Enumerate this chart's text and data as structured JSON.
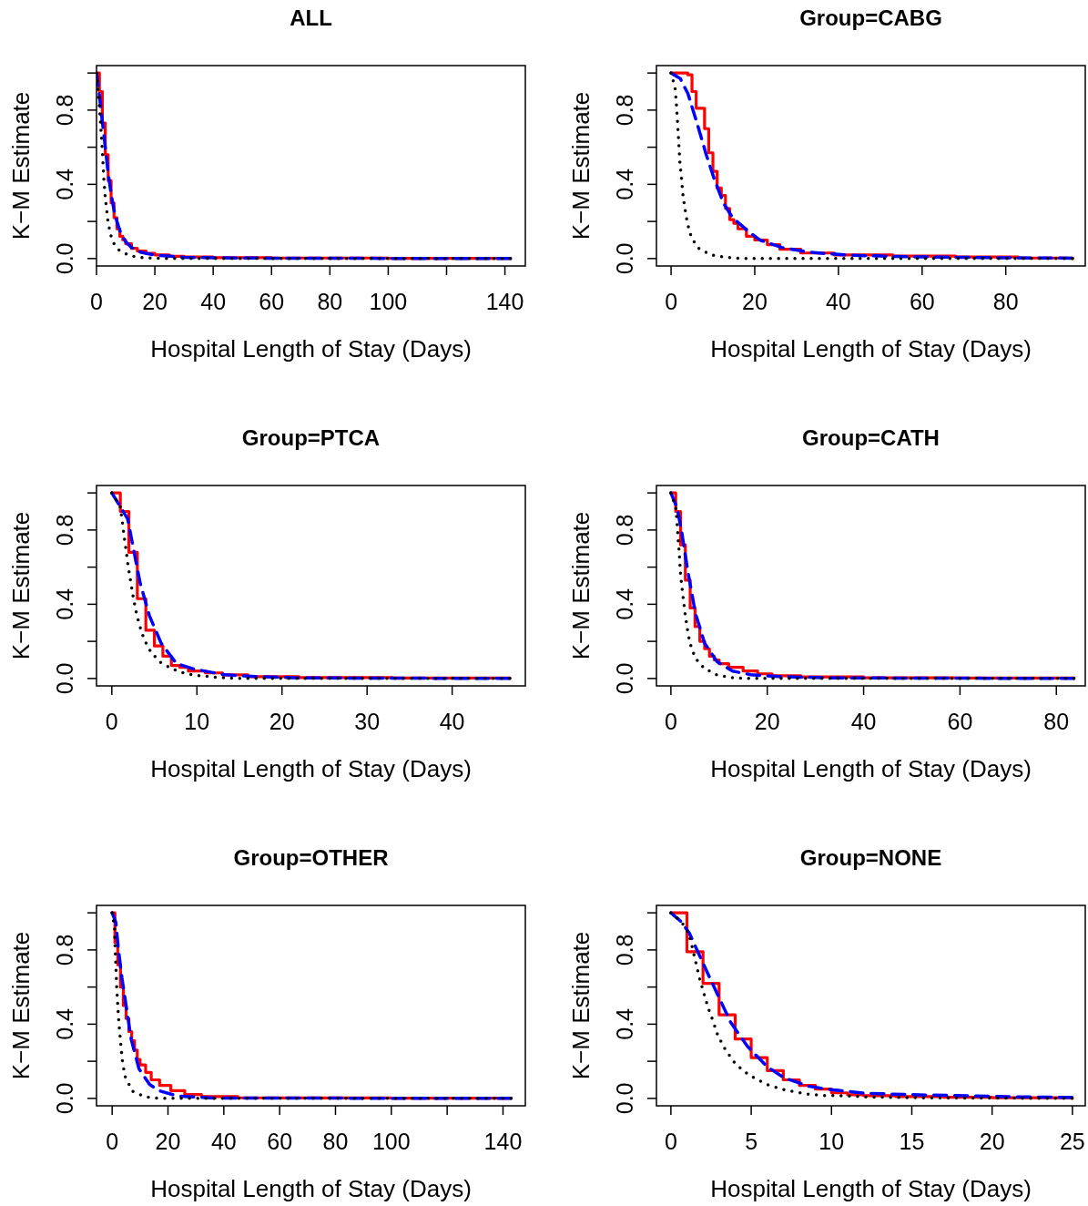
{
  "chart_data": [
    {
      "type": "step",
      "title": "ALL",
      "xlabel": "Hospital Length of Stay (Days)",
      "ylabel": "K−M Estimate",
      "xlim": [
        0,
        147
      ],
      "ylim": [
        -0.04,
        1.04
      ],
      "xticks": [
        0,
        20,
        40,
        60,
        80,
        100,
        {
          "value": 120,
          "label": null
        },
        140
      ],
      "yticks": [
        {
          "value": 0,
          "label": "0.0"
        },
        {
          "value": 0.2,
          "label": null
        },
        {
          "value": 0.4,
          "label": "0.4"
        },
        {
          "value": 0.6,
          "label": null
        },
        {
          "value": 0.8,
          "label": "0.8"
        },
        {
          "value": 1,
          "label": null
        }
      ],
      "series": [
        {
          "type": "step",
          "color": "#ff0000",
          "line_style": "solid",
          "x": [
            0,
            1,
            2,
            3,
            4,
            5,
            6,
            7,
            8,
            9,
            10,
            12,
            14,
            17,
            20,
            25,
            30,
            40,
            60,
            100,
            142
          ],
          "values": [
            1,
            0.9,
            0.73,
            0.56,
            0.42,
            0.3,
            0.22,
            0.16,
            0.12,
            0.1,
            0.08,
            0.055,
            0.04,
            0.028,
            0.02,
            0.012,
            0.008,
            0.005,
            0.003,
            0.001,
            0
          ]
        },
        {
          "type": "line",
          "color": "#0000ff",
          "line_style": "dashed",
          "x": [
            0,
            1,
            2,
            3,
            4,
            5,
            6,
            7,
            8,
            10,
            12,
            15,
            20,
            30,
            40,
            60,
            100,
            142
          ],
          "values": [
            1,
            0.88,
            0.74,
            0.6,
            0.46,
            0.35,
            0.26,
            0.2,
            0.15,
            0.09,
            0.06,
            0.035,
            0.018,
            0.007,
            0.004,
            0.002,
            0.001,
            0
          ]
        },
        {
          "type": "line",
          "color": "#000000",
          "line_style": "dotted",
          "x": [
            0,
            1,
            1.5,
            2,
            2.5,
            3,
            4,
            5,
            6,
            8,
            12,
            17,
            25,
            142
          ],
          "values": [
            1,
            0.82,
            0.7,
            0.58,
            0.43,
            0.33,
            0.19,
            0.12,
            0.08,
            0.04,
            0.013,
            0.003,
            0,
            0
          ]
        }
      ]
    },
    {
      "type": "step",
      "title": "Group=CABG",
      "xlabel": "Hospital Length of Stay (Days)",
      "ylabel": "K−M Estimate",
      "xlim": [
        -3.5,
        99
      ],
      "ylim": [
        -0.04,
        1.04
      ],
      "xticks": [
        0,
        20,
        40,
        60,
        80
      ],
      "yticks": [
        {
          "value": 0,
          "label": "0.0"
        },
        {
          "value": 0.2,
          "label": null
        },
        {
          "value": 0.4,
          "label": "0.4"
        },
        {
          "value": 0.6,
          "label": null
        },
        {
          "value": 0.8,
          "label": "0.8"
        },
        {
          "value": 1,
          "label": null
        }
      ],
      "series": [
        {
          "type": "step",
          "color": "#ff0000",
          "line_style": "solid",
          "x": [
            0,
            4,
            5,
            6,
            8,
            9,
            10,
            11,
            12,
            13,
            14,
            15,
            16,
            18,
            20,
            23,
            26,
            31,
            39,
            53,
            68,
            83,
            96
          ],
          "values": [
            1,
            0.99,
            0.9,
            0.81,
            0.7,
            0.57,
            0.47,
            0.38,
            0.34,
            0.27,
            0.21,
            0.19,
            0.16,
            0.12,
            0.1,
            0.075,
            0.05,
            0.03,
            0.02,
            0.013,
            0.008,
            0.003,
            0
          ]
        },
        {
          "type": "line",
          "color": "#0000ff",
          "line_style": "dashed",
          "x": [
            0,
            2.2,
            4,
            6.2,
            8.4,
            10.3,
            12.5,
            14.7,
            18.3,
            21.2,
            26.4,
            33,
            42.5,
            57,
            75.5,
            96
          ],
          "values": [
            1,
            0.97,
            0.89,
            0.73,
            0.56,
            0.43,
            0.3,
            0.22,
            0.15,
            0.1,
            0.06,
            0.034,
            0.018,
            0.01,
            0.005,
            0.002
          ]
        },
        {
          "type": "line",
          "color": "#000000",
          "line_style": "dotted",
          "x": [
            0,
            0.95,
            1.25,
            1.47,
            1.68,
            1.9,
            2.1,
            2.5,
            2.8,
            3.3,
            3.9,
            4.9,
            6.8,
            9.9,
            13.2,
            16.5,
            96
          ],
          "values": [
            1,
            0.92,
            0.84,
            0.76,
            0.68,
            0.6,
            0.52,
            0.43,
            0.35,
            0.27,
            0.19,
            0.11,
            0.05,
            0.018,
            0.007,
            0,
            0
          ]
        }
      ]
    },
    {
      "type": "step",
      "title": "Group=PTCA",
      "xlabel": "Hospital Length of Stay (Days)",
      "ylabel": "K−M Estimate",
      "xlim": [
        -1.8,
        48.6
      ],
      "ylim": [
        -0.04,
        1.04
      ],
      "xticks": [
        0,
        10,
        20,
        30,
        40
      ],
      "yticks": [
        {
          "value": 0,
          "label": "0.0"
        },
        {
          "value": 0.2,
          "label": null
        },
        {
          "value": 0.4,
          "label": "0.4"
        },
        {
          "value": 0.6,
          "label": null
        },
        {
          "value": 0.8,
          "label": "0.8"
        },
        {
          "value": 1,
          "label": null
        }
      ],
      "series": [
        {
          "type": "step",
          "color": "#ff0000",
          "line_style": "solid",
          "x": [
            0,
            1,
            2,
            3,
            4,
            5,
            6,
            7,
            8,
            9,
            11,
            13,
            16,
            22,
            33,
            46.8
          ],
          "values": [
            1,
            0.9,
            0.68,
            0.43,
            0.26,
            0.175,
            0.12,
            0.07,
            0.06,
            0.04,
            0.03,
            0.02,
            0.01,
            0.005,
            0.002,
            0
          ]
        },
        {
          "type": "line",
          "color": "#0000ff",
          "line_style": "dashed",
          "x": [
            0,
            1.86,
            3.3,
            4.4,
            5.8,
            7.6,
            9.7,
            13.3,
            16.9,
            21.9,
            46.8
          ],
          "values": [
            1,
            0.86,
            0.52,
            0.34,
            0.19,
            0.08,
            0.05,
            0.02,
            0.01,
            0.003,
            0
          ]
        },
        {
          "type": "line",
          "color": "#000000",
          "line_style": "dotted",
          "x": [
            0,
            0.97,
            1.22,
            1.43,
            1.68,
            1.9,
            2.19,
            2.47,
            2.8,
            3.23,
            3.8,
            4.62,
            5.73,
            7.17,
            8.67,
            10.3,
            11.9,
            13.5,
            15.1,
            46.8
          ],
          "values": [
            1,
            0.93,
            0.85,
            0.77,
            0.69,
            0.61,
            0.53,
            0.45,
            0.37,
            0.29,
            0.21,
            0.14,
            0.086,
            0.05,
            0.026,
            0.015,
            0.008,
            0.003,
            0,
            0
          ]
        }
      ]
    },
    {
      "type": "step",
      "title": "Group=CATH",
      "xlabel": "Hospital Length of Stay (Days)",
      "ylabel": "K−M Estimate",
      "xlim": [
        -3,
        86
      ],
      "ylim": [
        -0.04,
        1.04
      ],
      "xticks": [
        0,
        20,
        40,
        60,
        80
      ],
      "yticks": [
        {
          "value": 0,
          "label": "0.0"
        },
        {
          "value": 0.2,
          "label": null
        },
        {
          "value": 0.4,
          "label": "0.4"
        },
        {
          "value": 0.6,
          "label": null
        },
        {
          "value": 0.8,
          "label": "0.8"
        },
        {
          "value": 1,
          "label": null
        }
      ],
      "series": [
        {
          "type": "step",
          "color": "#ff0000",
          "line_style": "solid",
          "x": [
            0,
            1,
            2,
            3,
            4,
            5,
            6,
            7,
            8,
            9,
            10,
            12,
            15,
            18,
            21,
            27,
            40,
            59,
            83.7
          ],
          "values": [
            1,
            0.9,
            0.72,
            0.53,
            0.38,
            0.28,
            0.2,
            0.16,
            0.12,
            0.1,
            0.08,
            0.06,
            0.04,
            0.025,
            0.015,
            0.008,
            0.004,
            0.002,
            0
          ]
        },
        {
          "type": "line",
          "color": "#0000ff",
          "line_style": "dashed",
          "x": [
            0,
            1.28,
            2.24,
            3.5,
            5.1,
            7,
            9.6,
            12.8,
            16.6,
            22.4,
            33.9,
            83.7
          ],
          "values": [
            1,
            0.92,
            0.79,
            0.58,
            0.35,
            0.19,
            0.09,
            0.04,
            0.02,
            0.01,
            0.003,
            0
          ]
        },
        {
          "type": "line",
          "color": "#000000",
          "line_style": "dotted",
          "x": [
            0,
            1.02,
            1.28,
            1.47,
            1.73,
            1.92,
            2.17,
            2.56,
            2.94,
            3.39,
            3.96,
            5.05,
            6.9,
            9.46,
            12.3,
            15.1,
            83.7
          ],
          "values": [
            1,
            0.92,
            0.84,
            0.76,
            0.68,
            0.59,
            0.52,
            0.43,
            0.35,
            0.27,
            0.19,
            0.11,
            0.055,
            0.02,
            0.005,
            0,
            0
          ]
        }
      ]
    },
    {
      "type": "step",
      "title": "Group=OTHER",
      "xlabel": "Hospital Length of Stay (Days)",
      "ylabel": "K−M Estimate",
      "xlim": [
        -5.6,
        148
      ],
      "ylim": [
        -0.04,
        1.04
      ],
      "xticks": [
        0,
        20,
        40,
        60,
        80,
        100,
        {
          "value": 120,
          "label": null
        },
        140
      ],
      "yticks": [
        {
          "value": 0,
          "label": "0.0"
        },
        {
          "value": 0.2,
          "label": null
        },
        {
          "value": 0.4,
          "label": "0.4"
        },
        {
          "value": 0.6,
          "label": null
        },
        {
          "value": 0.8,
          "label": "0.8"
        },
        {
          "value": 1,
          "label": null
        }
      ],
      "series": [
        {
          "type": "step",
          "color": "#ff0000",
          "line_style": "solid",
          "x": [
            0,
            1,
            2,
            3,
            4,
            5,
            6,
            7,
            8,
            9,
            10,
            12,
            14,
            17,
            21,
            26,
            32,
            45,
            60,
            100,
            143
          ],
          "values": [
            1,
            0.84,
            0.72,
            0.6,
            0.5,
            0.43,
            0.36,
            0.31,
            0.26,
            0.21,
            0.18,
            0.14,
            0.1,
            0.07,
            0.042,
            0.021,
            0.01,
            0.003,
            0.002,
            0.001,
            0
          ]
        },
        {
          "type": "line",
          "color": "#0000ff",
          "line_style": "dashed",
          "x": [
            0,
            1.3,
            2.2,
            3.5,
            5.2,
            6.8,
            9.6,
            13.4,
            16.7,
            23.3,
            36.5,
            143
          ],
          "values": [
            1,
            0.95,
            0.81,
            0.65,
            0.48,
            0.32,
            0.16,
            0.075,
            0.042,
            0.013,
            0.002,
            0
          ]
        },
        {
          "type": "line",
          "color": "#000000",
          "line_style": "dotted",
          "x": [
            0,
            0.88,
            0.99,
            1.2,
            1.43,
            1.65,
            1.98,
            2.3,
            2.75,
            3.2,
            3.85,
            4.8,
            7.5,
            12,
            16.9,
            143
          ],
          "values": [
            1,
            0.92,
            0.84,
            0.76,
            0.68,
            0.59,
            0.51,
            0.43,
            0.35,
            0.27,
            0.18,
            0.11,
            0.036,
            0.008,
            0,
            0
          ]
        }
      ]
    },
    {
      "type": "step",
      "title": "Group=NONE",
      "xlabel": "Hospital Length of Stay (Days)",
      "ylabel": "K−M Estimate",
      "xlim": [
        -0.9,
        25.8
      ],
      "ylim": [
        -0.04,
        1.04
      ],
      "xticks": [
        0,
        5,
        10,
        15,
        20,
        25
      ],
      "yticks": [
        {
          "value": 0,
          "label": "0.0"
        },
        {
          "value": 0.2,
          "label": null
        },
        {
          "value": 0.4,
          "label": "0.4"
        },
        {
          "value": 0.6,
          "label": null
        },
        {
          "value": 0.8,
          "label": "0.8"
        },
        {
          "value": 1,
          "label": null
        }
      ],
      "series": [
        {
          "type": "step",
          "color": "#ff0000",
          "line_style": "solid",
          "x": [
            0,
            1,
            2,
            3,
            4,
            5,
            6,
            7,
            8,
            9,
            10,
            11,
            12,
            14,
            17,
            20,
            25
          ],
          "values": [
            1,
            0.79,
            0.62,
            0.45,
            0.32,
            0.22,
            0.15,
            0.1,
            0.07,
            0.05,
            0.03,
            0.02,
            0.015,
            0.01,
            0.006,
            0.004,
            0
          ]
        },
        {
          "type": "line",
          "color": "#0000ff",
          "line_style": "dashed",
          "x": [
            0,
            0.67,
            1.15,
            2.1,
            2.96,
            3.72,
            4.77,
            6,
            7.06,
            8.6,
            10.1,
            12,
            14.9,
            17.7,
            21.6,
            25
          ],
          "values": [
            1,
            0.95,
            0.89,
            0.71,
            0.55,
            0.41,
            0.28,
            0.17,
            0.11,
            0.065,
            0.046,
            0.028,
            0.02,
            0.015,
            0.008,
            0.005
          ]
        },
        {
          "type": "line",
          "color": "#000000",
          "line_style": "dotted",
          "x": [
            0,
            0.67,
            1.1,
            1.34,
            1.56,
            1.77,
            2.04,
            2.31,
            2.61,
            2.92,
            3.34,
            3.89,
            4.48,
            5.19,
            5.97,
            6.81,
            7.65,
            8.49,
            9.35,
            10.2,
            11.07,
            12,
            15.8,
            25
          ],
          "values": [
            1,
            0.95,
            0.89,
            0.81,
            0.73,
            0.65,
            0.57,
            0.49,
            0.42,
            0.34,
            0.27,
            0.2,
            0.15,
            0.11,
            0.075,
            0.052,
            0.036,
            0.023,
            0.016,
            0.015,
            0.013,
            0.008,
            0.003,
            0
          ]
        }
      ]
    }
  ]
}
